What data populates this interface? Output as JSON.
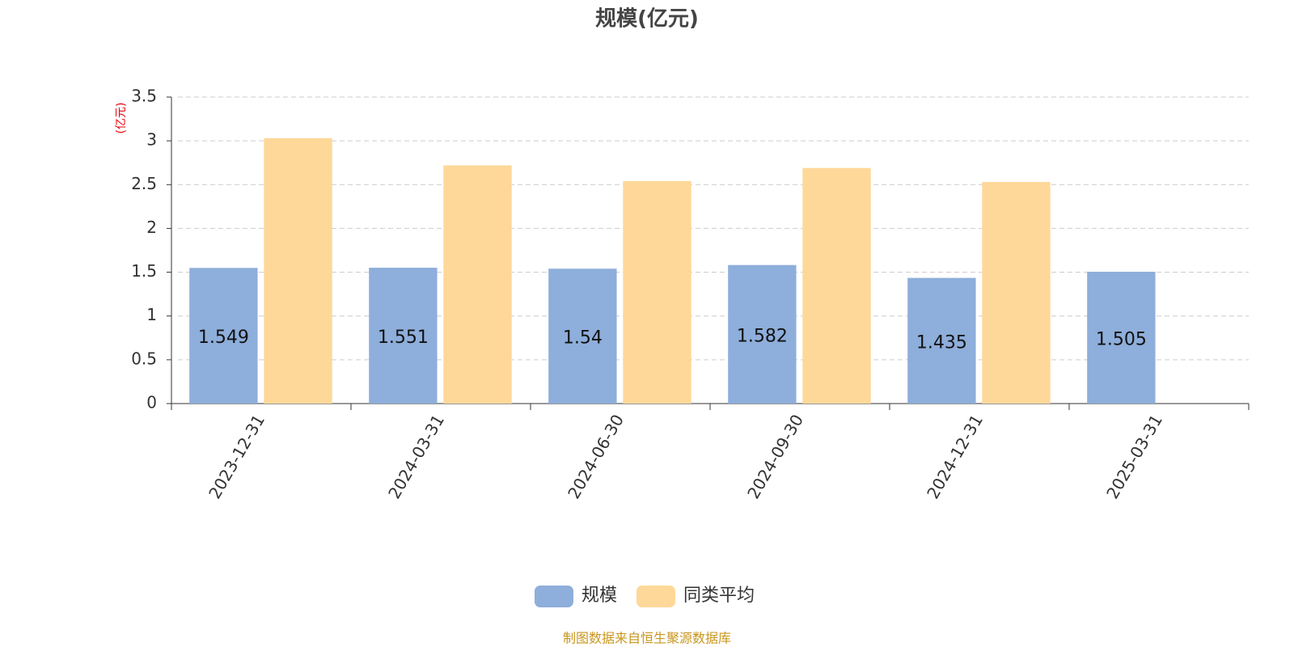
{
  "chart_data": {
    "type": "bar",
    "title": "规模(亿元)",
    "y_label": "(亿元)",
    "categories": [
      "2023-12-31",
      "2024-03-31",
      "2024-06-30",
      "2024-09-30",
      "2024-12-31",
      "2025-03-31"
    ],
    "series": [
      {
        "name": "规模",
        "color": "#8eaedb",
        "values": [
          1.549,
          1.551,
          1.54,
          1.582,
          1.435,
          1.505
        ]
      },
      {
        "name": "同类平均",
        "color": "#fed899",
        "values": [
          3.03,
          2.72,
          2.54,
          2.69,
          2.53,
          null
        ]
      }
    ],
    "ylim": [
      0,
      3.5
    ],
    "yticks": [
      0,
      0.5,
      1,
      1.5,
      2,
      2.5,
      3,
      3.5
    ],
    "grid": true,
    "legend": "bottom",
    "source": "制图数据来自恒生聚源数据库"
  }
}
